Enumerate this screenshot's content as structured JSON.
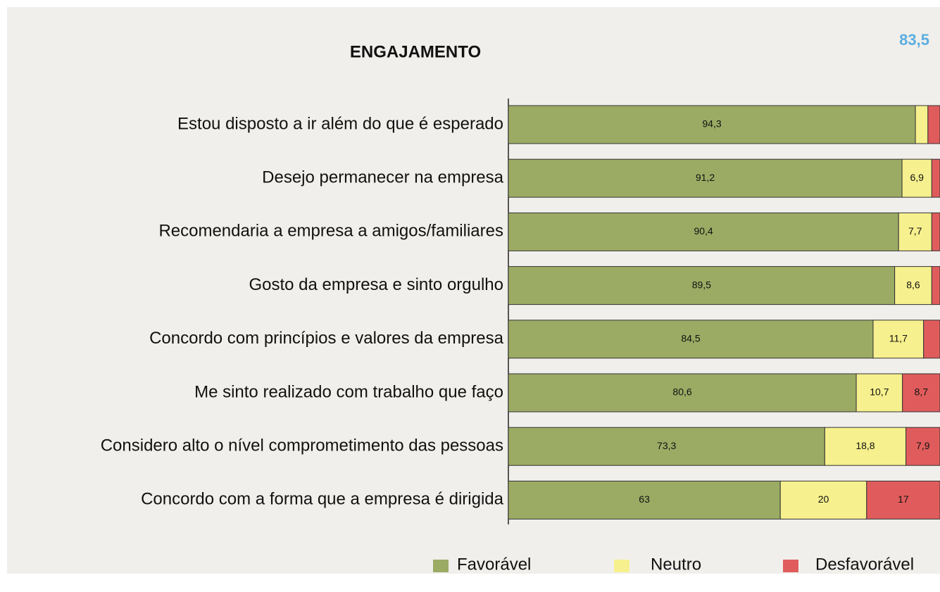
{
  "chart_data": {
    "type": "stacked-barh",
    "title": "ENGAJAMENTO",
    "annotation": "83,5",
    "categories": [
      "Estou disposto a ir além do que é esperado",
      "Desejo permanecer na empresa",
      "Recomendaria a empresa a amigos/familiares",
      "Gosto da empresa e sinto orgulho",
      "Concordo com princípios e valores da empresa",
      "Me sinto realizado com trabalho que faço",
      "Considero alto o nível comprometimento das pessoas",
      "Concordo com a forma que a empresa é dirigida"
    ],
    "series": [
      {
        "name": "Favorável",
        "color": "#9bab64",
        "values": [
          94.3,
          91.2,
          90.4,
          89.5,
          84.5,
          80.6,
          73.3,
          63
        ],
        "value_labels": [
          "94,3",
          "91,2",
          "90,4",
          "89,5",
          "84,5",
          "80,6",
          "73,3",
          "63"
        ]
      },
      {
        "name": "Neutro",
        "color": "#f6f08e",
        "values": [
          2.9,
          6.9,
          7.7,
          8.6,
          11.7,
          10.7,
          18.8,
          20
        ],
        "value_labels": [
          null,
          "6,9",
          "7,7",
          "8,6",
          "11,7",
          "10,7",
          "18,8",
          "20"
        ]
      },
      {
        "name": "Desfavorável",
        "color": "#e05c5c",
        "values": [
          2.8,
          1.9,
          1.9,
          1.9,
          3.8,
          8.7,
          7.9,
          17
        ],
        "value_labels": [
          null,
          null,
          null,
          null,
          null,
          "8,7",
          "7,9",
          "17"
        ]
      }
    ],
    "xlim": [
      0,
      100
    ]
  }
}
